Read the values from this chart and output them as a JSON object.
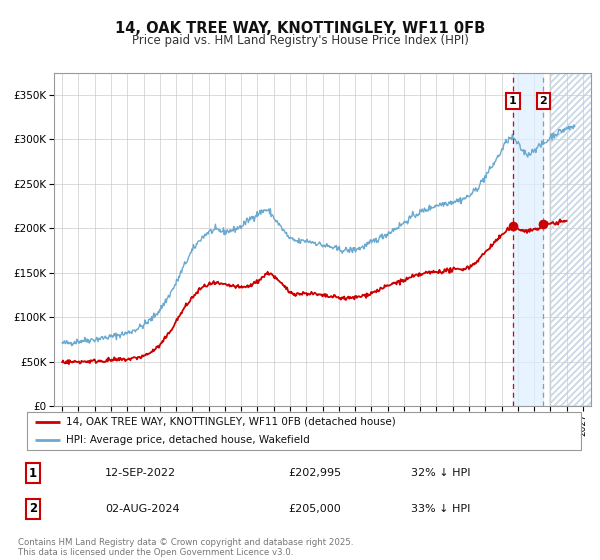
{
  "title": "14, OAK TREE WAY, KNOTTINGLEY, WF11 0FB",
  "subtitle": "Price paid vs. HM Land Registry's House Price Index (HPI)",
  "background_color": "#ffffff",
  "plot_bg_color": "#ffffff",
  "grid_color": "#cccccc",
  "hpi_color": "#6baad0",
  "price_color": "#cc0000",
  "ylim": [
    0,
    375000
  ],
  "yticks": [
    0,
    50000,
    100000,
    150000,
    200000,
    250000,
    300000,
    350000
  ],
  "ytick_labels": [
    "£0",
    "£50K",
    "£100K",
    "£150K",
    "£200K",
    "£250K",
    "£300K",
    "£350K"
  ],
  "xlim_start": 1994.5,
  "xlim_end": 2027.5,
  "xtick_years": [
    1995,
    1996,
    1997,
    1998,
    1999,
    2000,
    2001,
    2002,
    2003,
    2004,
    2005,
    2006,
    2007,
    2008,
    2009,
    2010,
    2011,
    2012,
    2013,
    2014,
    2015,
    2016,
    2017,
    2018,
    2019,
    2020,
    2021,
    2022,
    2023,
    2024,
    2025,
    2026,
    2027
  ],
  "sale1_date": 2022.7,
  "sale1_price": 202995,
  "sale1_label": "1",
  "sale2_date": 2024.58,
  "sale2_price": 205000,
  "sale2_label": "2",
  "legend_line1": "14, OAK TREE WAY, KNOTTINGLEY, WF11 0FB (detached house)",
  "legend_line2": "HPI: Average price, detached house, Wakefield",
  "table_row1": [
    "1",
    "12-SEP-2022",
    "£202,995",
    "32% ↓ HPI"
  ],
  "table_row2": [
    "2",
    "02-AUG-2024",
    "£205,000",
    "33% ↓ HPI"
  ],
  "footnote": "Contains HM Land Registry data © Crown copyright and database right 2025.\nThis data is licensed under the Open Government Licence v3.0.",
  "hatch_region_start": 2025.0,
  "shade_between_sales": true,
  "shade_color": "#ddeeff",
  "hatch_color": "#c8ddf0",
  "dashed_line1_color": "#dd0000",
  "dashed_line2_color": "#8899bb"
}
